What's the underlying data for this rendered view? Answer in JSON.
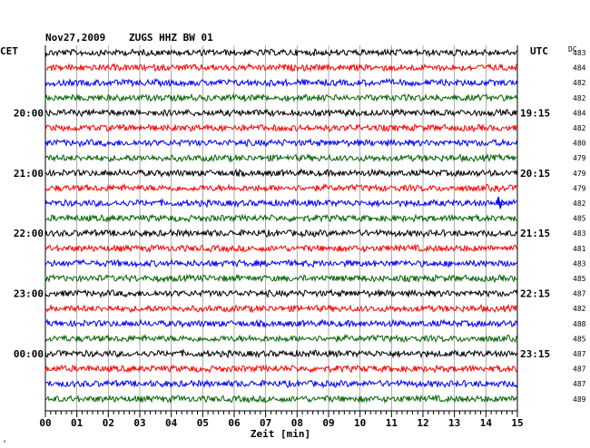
{
  "header": {
    "date": "Nov27,2009",
    "station": "ZUGS HHZ BW 01",
    "left_tz": "CET",
    "right_tz": "UTC",
    "dc_label": "DC"
  },
  "chart_data": {
    "type": "line",
    "title": "Nov27,2009   ZUGS HHZ BW 01",
    "xlabel": "Zeit [min]",
    "xlim": [
      0,
      15
    ],
    "x_ticks": [
      "00",
      "01",
      "02",
      "03",
      "04",
      "05",
      "06",
      "07",
      "08",
      "09",
      "10",
      "11",
      "12",
      "13",
      "14",
      "15"
    ],
    "trace_colors": [
      "#000000",
      "#ff0000",
      "#0000ff",
      "#006400"
    ],
    "trace_count": 24,
    "left_labels": [
      {
        "row": 4,
        "text": "20:00"
      },
      {
        "row": 8,
        "text": "21:00"
      },
      {
        "row": 12,
        "text": "22:00"
      },
      {
        "row": 16,
        "text": "23:00"
      },
      {
        "row": 20,
        "text": "00:00"
      }
    ],
    "right_labels": [
      {
        "row": 4,
        "text": "19:15"
      },
      {
        "row": 8,
        "text": "20:15"
      },
      {
        "row": 12,
        "text": "21:15"
      },
      {
        "row": 16,
        "text": "22:15"
      },
      {
        "row": 20,
        "text": "23:15"
      }
    ],
    "dc_values": [
      "483",
      "484",
      "482",
      "482",
      "484",
      "482",
      "480",
      "479",
      "479",
      "479",
      "482",
      "485",
      "483",
      "481",
      "483",
      "485",
      "487",
      "482",
      "488",
      "485",
      "487",
      "487",
      "487",
      "489"
    ],
    "events": [
      {
        "row": 10,
        "minute": 14.4
      }
    ]
  }
}
